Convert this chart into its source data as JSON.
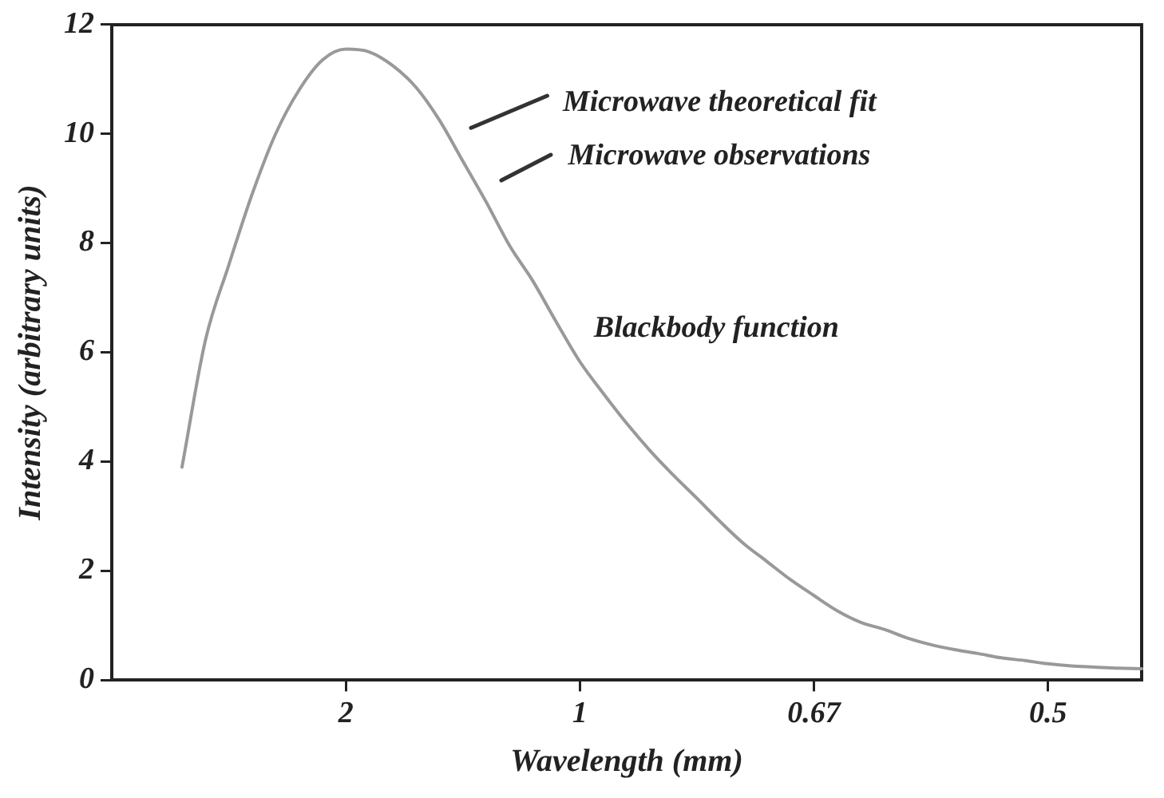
{
  "chart_data": {
    "type": "line",
    "xlabel": "Wavelength (mm)",
    "ylabel": "Intensity (arbitrary units)",
    "categories": [
      null,
      null,
      null,
      null,
      null,
      null,
      null,
      null,
      null,
      null,
      "2",
      null,
      null,
      null,
      null,
      null,
      null,
      null,
      null,
      null,
      "1",
      null,
      null,
      null,
      null,
      null,
      null,
      null,
      null,
      null,
      "0.67",
      null,
      null,
      null,
      null,
      null,
      null,
      null,
      null,
      null,
      "0.5",
      null,
      null,
      null,
      null
    ],
    "series": [
      {
        "color": "#999999",
        "values": [
          null,
          null,
          null,
          3.9,
          6.22,
          7.6,
          8.9,
          10.0,
          10.8,
          11.35,
          11.55,
          11.5,
          11.25,
          10.85,
          10.25,
          9.5,
          8.75,
          7.95,
          7.3,
          6.55,
          5.83,
          5.25,
          4.7,
          4.2,
          3.75,
          3.33,
          2.9,
          2.5,
          2.17,
          1.84,
          1.55,
          1.27,
          1.06,
          0.93,
          0.77,
          0.65,
          0.56,
          0.49,
          0.41,
          0.36,
          0.3,
          0.26,
          0.24,
          0.22,
          0.21
        ]
      }
    ],
    "ylim": [
      0,
      12
    ],
    "yticks": [
      0,
      2,
      4,
      6,
      8,
      10,
      12
    ],
    "annotations": [
      "Microwave theoretical fit",
      "Microwave observations",
      "Blackbody function"
    ],
    "grid": false,
    "legend": false,
    "marker": "none",
    "line_style": "solid"
  }
}
